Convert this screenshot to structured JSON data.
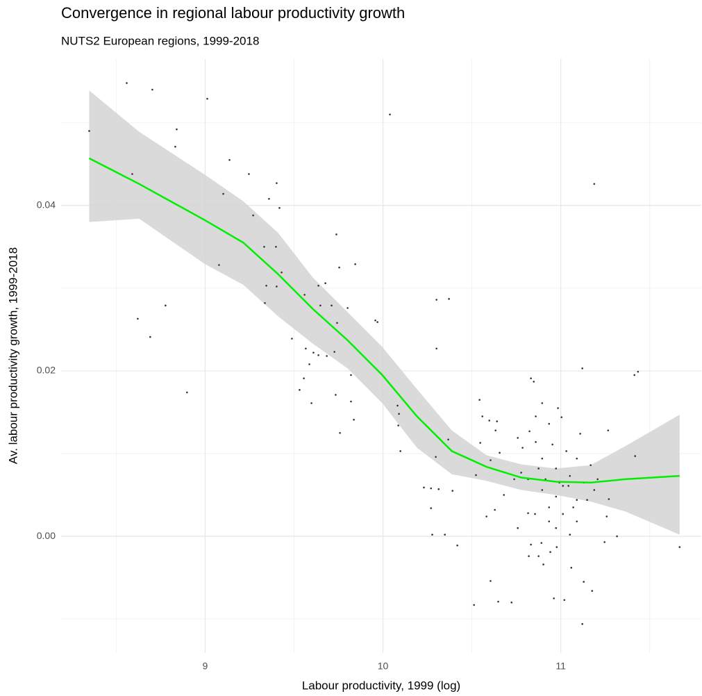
{
  "chart_data": {
    "type": "scatter",
    "title": "Convergence in regional labour productivity growth",
    "subtitle": "NUTS2 European regions, 1999-2018",
    "x_label": "Labour productivity, 1999 (log)",
    "y_label": "Av. labour productivity growth, 1999-2018",
    "xlim": [
      8.19,
      11.79
    ],
    "ylim": [
      -0.0141,
      0.0577
    ],
    "xticks": [
      9,
      10,
      11
    ],
    "yticks": [
      {
        "value": 0,
        "label": "0.00"
      },
      0.02,
      0.04
    ],
    "x_minor_grid": [
      8.5,
      9.5,
      10.5,
      11.5
    ],
    "y_minor_grid": [
      -0.01,
      0.01,
      0.03,
      0.05
    ],
    "grid": true,
    "point_color": "#333333",
    "x": [
      8.348,
      8.559,
      8.703,
      9.012,
      8.59,
      8.84,
      8.832,
      9.137,
      9.246,
      9.102,
      9.402,
      9.359,
      9.418,
      9.27,
      9.078,
      9.332,
      9.398,
      9.43,
      9.344,
      9.402,
      9.336,
      8.777,
      8.621,
      8.691,
      8.898,
      10.039,
      11.188,
      9.738,
      9.844,
      9.754,
      9.676,
      9.637,
      9.711,
      9.648,
      9.801,
      9.742,
      9.559,
      9.957,
      9.969,
      9.488,
      9.566,
      9.609,
      9.586,
      9.637,
      9.684,
      9.727,
      9.82,
      9.555,
      9.531,
      9.598,
      9.734,
      9.82,
      9.758,
      9.836,
      10.082,
      10.09,
      10.086,
      10.098,
      10.301,
      10.371,
      10.301,
      10.297,
      10.367,
      10.23,
      10.27,
      10.313,
      10.391,
      10.27,
      10.277,
      10.348,
      10.418,
      10.543,
      10.559,
      10.598,
      10.641,
      10.633,
      10.547,
      10.605,
      10.656,
      10.512,
      10.605,
      10.648,
      10.723,
      10.523,
      10.582,
      10.629,
      10.68,
      10.758,
      10.816,
      10.832,
      10.82,
      10.875,
      10.891,
      10.941,
      10.977,
      10.902,
      10.961,
      11.02,
      11.059,
      11.121,
      11.129,
      11.176,
      11.246,
      11.258,
      11.316,
      11.27,
      11.121,
      11.266,
      11.414,
      11.434,
      11.418,
      11.668,
      10.832,
      10.848,
      10.859,
      10.895,
      10.984,
      11.004,
      10.934,
      10.824,
      10.859,
      10.758,
      10.785,
      10.895,
      10.973,
      11.051,
      11.129,
      10.816,
      10.895,
      10.973,
      11.012,
      11.09,
      11.168,
      10.738,
      10.934,
      11.012,
      11.09,
      10.973,
      11.051,
      10.855,
      11.09,
      11.031,
      11.109,
      10.953,
      10.914,
      10.992,
      11.07,
      11.148,
      11.188,
      11.043,
      10.875,
      10.934,
      11.207,
      10.777
    ],
    "y": [
      0.049,
      0.0548,
      0.054,
      0.0529,
      0.0438,
      0.0492,
      0.0471,
      0.0455,
      0.0438,
      0.0414,
      0.0427,
      0.0408,
      0.0397,
      0.0388,
      0.0328,
      0.035,
      0.035,
      0.0319,
      0.0303,
      0.0302,
      0.0282,
      0.0279,
      0.0263,
      0.0241,
      0.0174,
      0.051,
      0.0426,
      0.0365,
      0.0329,
      0.0325,
      0.0306,
      0.0303,
      0.0279,
      0.0279,
      0.0276,
      0.0258,
      0.0292,
      0.0261,
      0.0259,
      0.0239,
      0.0227,
      0.0222,
      0.0208,
      0.0219,
      0.0218,
      0.0223,
      0.0195,
      0.0191,
      0.0177,
      0.0161,
      0.0171,
      0.0163,
      0.0125,
      0.0141,
      0.0158,
      0.0148,
      0.0134,
      0.0103,
      0.0286,
      0.0287,
      0.0227,
      0.0096,
      0.0117,
      0.0059,
      0.0058,
      0.0057,
      0.0055,
      0.0034,
      0.0002,
      0.0002,
      -0.0011,
      0.0165,
      0.0145,
      0.014,
      0.0139,
      0.0128,
      0.0113,
      0.0092,
      0.0101,
      -0.0083,
      -0.0054,
      -0.0079,
      -0.008,
      0.0074,
      0.0024,
      0.0032,
      0.005,
      0.001,
      0.0028,
      -0.001,
      -0.0024,
      -0.0024,
      -0.0008,
      -0.0019,
      -0.0013,
      -0.0034,
      -0.0075,
      -0.0077,
      -0.0038,
      -0.0106,
      -0.0055,
      -0.0066,
      -0.0007,
      0.0024,
      0.0,
      0.0045,
      0.0203,
      0.0128,
      0.0195,
      0.0199,
      0.0097,
      -0.0013,
      0.0191,
      0.0187,
      0.0145,
      0.0161,
      0.0155,
      0.0144,
      0.0136,
      0.0127,
      0.0114,
      0.0119,
      0.0107,
      0.0094,
      0.0082,
      0.0073,
      0.0065,
      0.0069,
      0.0056,
      0.0048,
      0.0061,
      0.0044,
      0.0086,
      0.0069,
      0.0035,
      0.0027,
      0.0018,
      0.001,
      0.0002,
      0.0027,
      0.0094,
      0.0103,
      0.0124,
      0.0111,
      0.0069,
      0.0065,
      0.0035,
      0.0044,
      0.0056,
      0.0061,
      0.0082,
      0.0018,
      0.0069,
      0.0077
    ],
    "smooth": {
      "color": "#00ee00",
      "band_color": "#d3d3d3",
      "x": [
        8.348,
        8.629,
        9.0,
        9.215,
        9.41,
        9.605,
        9.801,
        9.996,
        10.191,
        10.387,
        10.582,
        10.777,
        10.973,
        11.168,
        11.363,
        11.668
      ],
      "fit": [
        0.0457,
        0.0426,
        0.0382,
        0.0355,
        0.0317,
        0.0275,
        0.0237,
        0.0195,
        0.0145,
        0.0103,
        0.0084,
        0.0071,
        0.0066,
        0.0065,
        0.0069,
        0.0073
      ],
      "upper": [
        0.0539,
        0.0489,
        0.0437,
        0.0405,
        0.0367,
        0.0313,
        0.0271,
        0.0229,
        0.0178,
        0.0128,
        0.0098,
        0.0087,
        0.0082,
        0.0086,
        0.0109,
        0.0147
      ],
      "lower": [
        0.038,
        0.0384,
        0.0329,
        0.0304,
        0.0266,
        0.0233,
        0.0203,
        0.0161,
        0.0107,
        0.0075,
        0.0067,
        0.0056,
        0.005,
        0.0042,
        0.003,
        0.0002
      ]
    }
  }
}
